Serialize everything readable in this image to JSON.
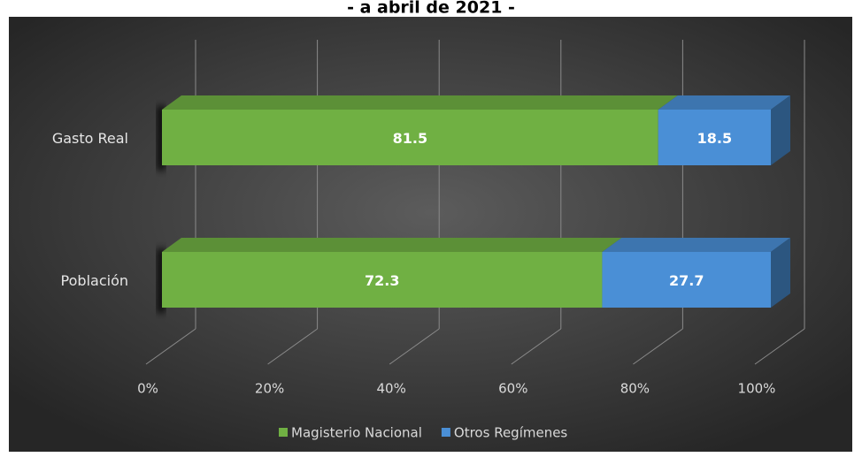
{
  "chart_data": {
    "type": "bar3d_stacked_horizontal",
    "title": "- a abril de 2021 -",
    "categories": [
      "Gasto Real",
      "Población"
    ],
    "series": [
      {
        "name": "Magisterio Nacional",
        "color": "#70b043",
        "values": [
          81.5,
          72.3
        ]
      },
      {
        "name": "Otros Regímenes",
        "color": "#4a8fd6",
        "values": [
          18.5,
          27.7
        ]
      }
    ],
    "xlim": [
      0,
      100
    ],
    "xticks": [
      {
        "value": 0,
        "label": "0%"
      },
      {
        "value": 20,
        "label": "20%"
      },
      {
        "value": 40,
        "label": "40%"
      },
      {
        "value": 60,
        "label": "60%"
      },
      {
        "value": 80,
        "label": "80%"
      },
      {
        "value": 100,
        "label": "100%"
      }
    ],
    "grid": true,
    "legend": "bottom"
  }
}
